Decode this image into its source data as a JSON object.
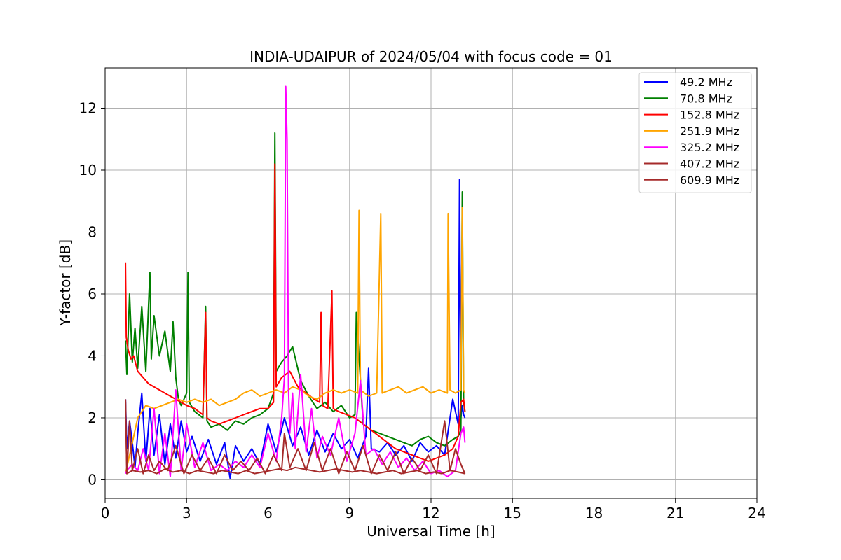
{
  "chart_data": {
    "type": "line",
    "title": "INDIA-UDAIPUR of 2024/05/04 with focus code = 01",
    "xlabel": "Universal Time [h]",
    "ylabel": "Y-factor [dB]",
    "xlim": [
      0,
      24
    ],
    "ylim": [
      -0.6,
      13.3
    ],
    "xticks": [
      0,
      3,
      6,
      9,
      12,
      15,
      18,
      21,
      24
    ],
    "yticks": [
      0,
      2,
      4,
      6,
      8,
      10,
      12
    ],
    "grid": true,
    "legend_position": "top-right",
    "series": [
      {
        "name": " 49.2 MHz",
        "color": "#0000ff",
        "x": [
          0.75,
          0.8,
          0.9,
          1.0,
          1.1,
          1.2,
          1.35,
          1.5,
          1.65,
          1.8,
          2.0,
          2.2,
          2.4,
          2.6,
          2.8,
          3.0,
          3.2,
          3.5,
          3.8,
          4.1,
          4.4,
          4.6,
          4.8,
          5.1,
          5.4,
          5.7,
          6.0,
          6.3,
          6.6,
          6.9,
          7.2,
          7.5,
          7.8,
          8.1,
          8.4,
          8.7,
          9.0,
          9.3,
          9.6,
          9.7,
          9.8,
          10.1,
          10.4,
          10.7,
          11.0,
          11.3,
          11.6,
          11.9,
          12.2,
          12.5,
          12.8,
          13.0,
          13.05,
          13.1,
          13.15,
          13.2,
          13.25
        ],
        "y": [
          2.6,
          1.0,
          1.9,
          1.2,
          0.4,
          1.5,
          2.8,
          0.6,
          2.3,
          0.8,
          2.1,
          0.5,
          1.8,
          0.7,
          1.9,
          0.9,
          1.4,
          0.6,
          1.3,
          0.5,
          1.2,
          0.05,
          1.1,
          0.6,
          1.0,
          0.5,
          1.8,
          0.9,
          2.0,
          1.1,
          1.7,
          0.8,
          1.6,
          0.9,
          1.5,
          1.0,
          1.3,
          0.7,
          1.4,
          3.6,
          1.0,
          0.9,
          1.2,
          0.8,
          1.1,
          0.6,
          1.2,
          0.9,
          1.1,
          0.8,
          2.6,
          1.8,
          9.7,
          2.0,
          2.4,
          2.1,
          2.0
        ]
      },
      {
        "name": " 70.8 MHz",
        "color": "#008000",
        "x": [
          0.75,
          0.8,
          0.9,
          1.0,
          1.1,
          1.2,
          1.35,
          1.5,
          1.65,
          1.7,
          1.8,
          2.0,
          2.2,
          2.4,
          2.5,
          2.6,
          2.7,
          2.8,
          3.0,
          3.05,
          3.1,
          3.3,
          3.6,
          3.7,
          3.75,
          3.9,
          4.2,
          4.5,
          4.8,
          5.1,
          5.4,
          5.7,
          6.0,
          6.2,
          6.25,
          6.3,
          6.5,
          6.7,
          6.9,
          7.2,
          7.5,
          7.8,
          8.1,
          8.4,
          8.7,
          9.0,
          9.2,
          9.25,
          9.5,
          9.8,
          10.1,
          10.4,
          10.7,
          11.0,
          11.3,
          11.6,
          11.9,
          12.2,
          12.5,
          12.8,
          13.0,
          13.1,
          13.15,
          13.2,
          13.25
        ],
        "y": [
          4.5,
          3.4,
          6.0,
          3.8,
          4.9,
          3.6,
          5.6,
          3.5,
          6.7,
          3.9,
          5.3,
          4.0,
          4.8,
          3.5,
          5.1,
          3.3,
          2.6,
          2.4,
          2.8,
          6.7,
          2.5,
          2.2,
          2.0,
          5.6,
          1.9,
          1.7,
          1.8,
          1.6,
          1.9,
          1.8,
          2.0,
          2.1,
          2.3,
          2.8,
          11.2,
          3.5,
          3.8,
          4.0,
          4.3,
          3.2,
          2.7,
          2.3,
          2.5,
          2.2,
          2.4,
          2.0,
          2.1,
          5.4,
          1.8,
          1.6,
          1.5,
          1.4,
          1.3,
          1.2,
          1.1,
          1.3,
          1.4,
          1.2,
          1.1,
          1.3,
          1.4,
          1.6,
          9.3,
          2.5,
          2.2
        ]
      },
      {
        "name": " 152.8 MHz",
        "color": "#ff0000",
        "x": [
          0.75,
          0.78,
          0.85,
          0.95,
          1.05,
          1.2,
          1.4,
          1.6,
          1.8,
          2.0,
          2.2,
          2.4,
          2.6,
          2.8,
          3.0,
          3.3,
          3.6,
          3.7,
          3.75,
          3.9,
          4.2,
          4.5,
          4.8,
          5.1,
          5.4,
          5.7,
          6.0,
          6.2,
          6.25,
          6.3,
          6.5,
          6.8,
          7.1,
          7.4,
          7.7,
          7.9,
          7.95,
          8.0,
          8.2,
          8.35,
          8.4,
          8.6,
          8.9,
          9.2,
          9.5,
          9.8,
          10.1,
          10.4,
          10.7,
          11.0,
          11.3,
          11.6,
          11.9,
          12.2,
          12.5,
          12.8,
          13.0,
          13.1,
          13.2,
          13.25
        ],
        "y": [
          7.0,
          4.6,
          4.2,
          3.9,
          4.0,
          3.5,
          3.3,
          3.1,
          3.0,
          2.9,
          2.8,
          2.7,
          2.6,
          2.5,
          2.4,
          2.3,
          2.1,
          5.4,
          2.0,
          1.9,
          1.8,
          1.9,
          2.0,
          2.1,
          2.2,
          2.3,
          2.3,
          2.5,
          10.2,
          3.0,
          3.3,
          3.5,
          3.0,
          2.8,
          2.6,
          2.5,
          5.4,
          2.4,
          2.3,
          6.1,
          2.3,
          2.2,
          2.1,
          2.0,
          1.8,
          1.6,
          1.4,
          1.2,
          1.0,
          0.9,
          0.8,
          0.7,
          0.6,
          0.7,
          0.8,
          1.0,
          1.4,
          2.5,
          2.6,
          2.2
        ]
      },
      {
        "name": " 251.9 MHz",
        "color": "#ffa500",
        "x": [
          0.75,
          0.8,
          1.0,
          1.2,
          1.5,
          1.8,
          2.1,
          2.4,
          2.7,
          3.0,
          3.3,
          3.6,
          3.9,
          4.2,
          4.5,
          4.8,
          5.1,
          5.4,
          5.7,
          6.0,
          6.3,
          6.6,
          6.9,
          7.2,
          7.5,
          7.8,
          8.1,
          8.4,
          8.7,
          9.0,
          9.3,
          9.35,
          9.4,
          9.7,
          10.0,
          10.15,
          10.2,
          10.5,
          10.8,
          11.1,
          11.4,
          11.7,
          12.0,
          12.3,
          12.6,
          12.63,
          12.7,
          12.9,
          13.1,
          13.15,
          13.2,
          13.25
        ],
        "y": [
          0.2,
          0.4,
          1.2,
          2.0,
          2.4,
          2.3,
          2.4,
          2.5,
          2.6,
          2.5,
          2.6,
          2.5,
          2.6,
          2.4,
          2.5,
          2.6,
          2.8,
          2.9,
          2.7,
          2.8,
          2.9,
          2.8,
          3.0,
          2.9,
          2.7,
          2.6,
          2.8,
          2.9,
          2.8,
          2.9,
          2.8,
          8.7,
          2.9,
          2.7,
          2.8,
          8.6,
          2.8,
          2.9,
          3.0,
          2.8,
          2.9,
          3.0,
          2.8,
          2.9,
          2.8,
          8.6,
          2.9,
          2.8,
          2.9,
          8.8,
          2.9,
          2.8
        ]
      },
      {
        "name": " 325.2 MHz",
        "color": "#ff00ff",
        "x": [
          0.75,
          0.8,
          1.0,
          1.2,
          1.4,
          1.6,
          1.8,
          2.0,
          2.2,
          2.4,
          2.6,
          2.8,
          3.0,
          3.3,
          3.6,
          3.9,
          4.2,
          4.5,
          4.8,
          5.1,
          5.4,
          5.7,
          6.0,
          6.3,
          6.5,
          6.6,
          6.65,
          6.7,
          6.75,
          6.8,
          6.9,
          7.0,
          7.2,
          7.4,
          7.6,
          7.8,
          8.0,
          8.3,
          8.6,
          8.9,
          9.2,
          9.4,
          9.6,
          9.9,
          10.2,
          10.5,
          10.8,
          11.1,
          11.4,
          11.7,
          12.0,
          12.3,
          12.6,
          12.9,
          13.1,
          13.2,
          13.25
        ],
        "y": [
          0.2,
          0.3,
          0.5,
          0.3,
          1.0,
          0.3,
          2.3,
          0.2,
          1.5,
          0.1,
          2.9,
          0.3,
          1.8,
          0.4,
          1.2,
          0.3,
          0.5,
          0.3,
          0.6,
          0.4,
          0.8,
          0.4,
          1.5,
          0.6,
          2.0,
          3.3,
          12.7,
          11.0,
          3.0,
          1.5,
          2.8,
          1.0,
          3.4,
          0.9,
          2.3,
          0.7,
          1.4,
          0.8,
          2.0,
          0.6,
          1.5,
          3.2,
          0.8,
          1.0,
          0.5,
          0.9,
          0.4,
          0.7,
          0.3,
          0.6,
          0.2,
          0.3,
          0.1,
          0.3,
          1.5,
          1.7,
          1.2
        ]
      },
      {
        "name": " 407.2 MHz",
        "color": "#a52a2a",
        "x": [
          0.75,
          0.8,
          1.0,
          1.3,
          1.6,
          1.9,
          2.2,
          2.5,
          2.8,
          3.1,
          3.4,
          3.7,
          4.0,
          4.3,
          4.6,
          4.9,
          5.2,
          5.5,
          5.8,
          6.1,
          6.4,
          6.7,
          7.0,
          7.3,
          7.6,
          7.9,
          8.2,
          8.5,
          8.8,
          9.1,
          9.4,
          9.7,
          10.0,
          10.3,
          10.6,
          10.9,
          11.2,
          11.5,
          11.8,
          12.1,
          12.4,
          12.7,
          13.0,
          13.25
        ],
        "y": [
          2.5,
          0.2,
          0.3,
          0.25,
          0.3,
          0.2,
          0.35,
          0.25,
          0.3,
          0.2,
          0.3,
          0.25,
          0.2,
          0.3,
          0.25,
          0.2,
          0.3,
          0.2,
          0.25,
          0.3,
          0.35,
          0.3,
          0.4,
          0.35,
          0.3,
          0.25,
          0.3,
          0.35,
          0.3,
          0.25,
          0.3,
          0.25,
          0.2,
          0.25,
          0.3,
          0.2,
          0.25,
          0.3,
          0.2,
          0.25,
          0.2,
          0.3,
          0.25,
          0.2
        ]
      },
      {
        "name": " 609.9 MHz",
        "color": "#a52a2a",
        "x": [
          0.75,
          0.8,
          0.9,
          1.0,
          1.2,
          1.4,
          1.6,
          1.8,
          2.0,
          2.3,
          2.6,
          2.9,
          3.2,
          3.5,
          3.8,
          4.1,
          4.4,
          4.7,
          5.0,
          5.3,
          5.6,
          5.9,
          6.2,
          6.5,
          6.6,
          6.8,
          7.1,
          7.4,
          7.7,
          8.0,
          8.3,
          8.6,
          8.9,
          9.2,
          9.5,
          9.8,
          10.1,
          10.4,
          10.7,
          11.0,
          11.3,
          11.6,
          11.9,
          12.2,
          12.5,
          12.7,
          12.9,
          13.1,
          13.25
        ],
        "y": [
          2.6,
          0.2,
          1.9,
          0.3,
          1.0,
          0.2,
          0.8,
          0.3,
          0.6,
          0.3,
          1.1,
          0.2,
          0.8,
          0.3,
          0.7,
          0.2,
          0.8,
          0.3,
          0.6,
          0.3,
          0.7,
          0.2,
          0.8,
          0.3,
          1.5,
          0.4,
          1.0,
          0.3,
          1.2,
          0.3,
          1.0,
          0.2,
          0.9,
          0.3,
          1.1,
          0.2,
          0.8,
          0.3,
          0.9,
          0.2,
          0.7,
          0.3,
          0.8,
          0.2,
          1.9,
          0.3,
          1.0,
          0.5,
          0.2
        ]
      }
    ]
  }
}
